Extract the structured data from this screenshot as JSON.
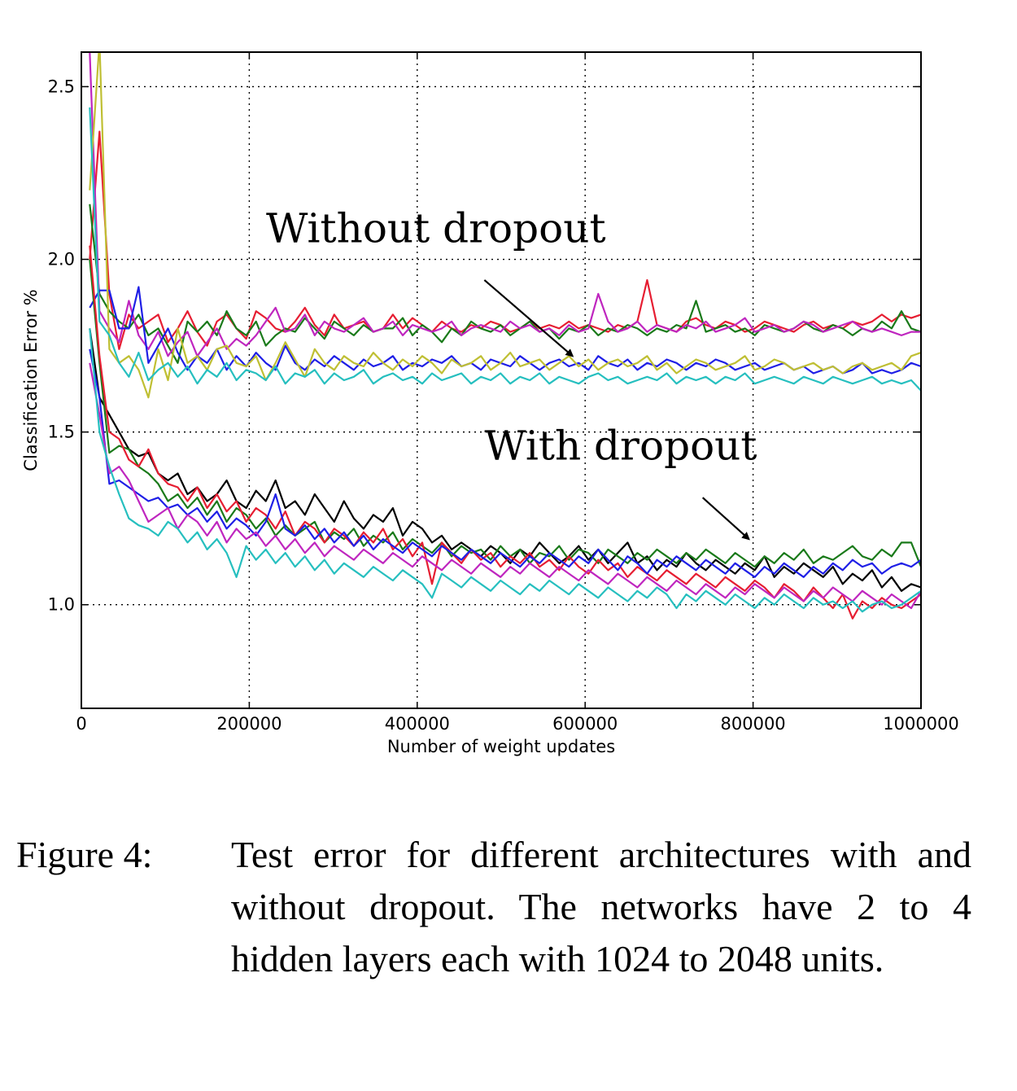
{
  "chart_data": {
    "type": "line",
    "xlabel": "Number of weight updates",
    "ylabel": "Classification Error %",
    "xlim": [
      0,
      1000000
    ],
    "ylim": [
      0.7,
      2.6
    ],
    "xticks": [
      0,
      200000,
      400000,
      600000,
      800000,
      1000000
    ],
    "xtick_labels": [
      "0",
      "200000",
      "400000",
      "600000",
      "800000",
      "1000000"
    ],
    "yticks": [
      1.0,
      1.5,
      2.0,
      2.5
    ],
    "ytick_labels": [
      "1.0",
      "1.5",
      "2.0",
      "2.5"
    ],
    "grid": true,
    "legend": "none",
    "annotations": [
      {
        "text": "Without dropout",
        "x": 220000,
        "y": 2.05,
        "arrow_from": [
          480000,
          1.94
        ],
        "arrow_to": [
          585000,
          1.72
        ]
      },
      {
        "text": "With dropout",
        "x": 480000,
        "y": 1.42,
        "arrow_from": [
          740000,
          1.31
        ],
        "arrow_to": [
          795000,
          1.19
        ]
      }
    ],
    "series_colors": {
      "blue": "#1f1fe6",
      "green": "#1a7a1a",
      "red": "#e61e32",
      "cyan": "#26bfbf",
      "magenta": "#bf26bf",
      "yellow": "#bfbf33",
      "black": "#000000"
    },
    "series": [
      {
        "group": "without",
        "color": "red",
        "values": [
          2.0,
          2.37,
          1.9,
          1.74,
          1.84,
          1.8,
          1.82,
          1.84,
          1.76,
          1.8,
          1.85,
          1.79,
          1.75,
          1.82,
          1.84,
          1.8,
          1.77,
          1.85,
          1.83,
          1.8,
          1.79,
          1.82,
          1.86,
          1.81,
          1.78,
          1.84,
          1.8,
          1.81,
          1.82,
          1.79,
          1.8,
          1.84,
          1.8,
          1.83,
          1.81,
          1.79,
          1.82,
          1.8,
          1.79,
          1.81,
          1.8,
          1.82,
          1.81,
          1.79,
          1.8,
          1.82,
          1.8,
          1.81,
          1.8,
          1.82,
          1.8,
          1.81,
          1.8,
          1.79,
          1.81,
          1.8,
          1.82,
          1.94,
          1.81,
          1.8,
          1.79,
          1.82,
          1.83,
          1.81,
          1.8,
          1.82,
          1.81,
          1.79,
          1.8,
          1.82,
          1.81,
          1.8,
          1.79,
          1.81,
          1.82,
          1.8,
          1.81,
          1.8,
          1.82,
          1.81,
          1.82,
          1.84,
          1.82,
          1.84,
          1.83,
          1.84
        ]
      },
      {
        "group": "without",
        "color": "green",
        "values": [
          2.16,
          1.9,
          1.85,
          1.82,
          1.8,
          1.84,
          1.78,
          1.8,
          1.75,
          1.7,
          1.82,
          1.79,
          1.82,
          1.78,
          1.85,
          1.8,
          1.78,
          1.82,
          1.75,
          1.78,
          1.8,
          1.79,
          1.83,
          1.8,
          1.77,
          1.82,
          1.8,
          1.78,
          1.81,
          1.79,
          1.8,
          1.8,
          1.83,
          1.78,
          1.81,
          1.79,
          1.76,
          1.8,
          1.78,
          1.82,
          1.8,
          1.79,
          1.81,
          1.78,
          1.8,
          1.82,
          1.79,
          1.8,
          1.77,
          1.8,
          1.79,
          1.81,
          1.78,
          1.8,
          1.79,
          1.81,
          1.8,
          1.78,
          1.8,
          1.79,
          1.81,
          1.8,
          1.88,
          1.79,
          1.8,
          1.81,
          1.79,
          1.8,
          1.78,
          1.81,
          1.8,
          1.79,
          1.8,
          1.82,
          1.8,
          1.79,
          1.81,
          1.8,
          1.78,
          1.8,
          1.79,
          1.82,
          1.8,
          1.85,
          1.8,
          1.79
        ]
      },
      {
        "group": "without",
        "color": "magenta",
        "values": [
          2.6,
          1.85,
          1.8,
          1.76,
          1.88,
          1.78,
          1.74,
          1.79,
          1.72,
          1.76,
          1.79,
          1.72,
          1.76,
          1.8,
          1.74,
          1.77,
          1.75,
          1.78,
          1.82,
          1.86,
          1.79,
          1.8,
          1.84,
          1.78,
          1.82,
          1.8,
          1.79,
          1.81,
          1.83,
          1.79,
          1.8,
          1.82,
          1.78,
          1.81,
          1.8,
          1.79,
          1.8,
          1.82,
          1.78,
          1.8,
          1.81,
          1.8,
          1.79,
          1.82,
          1.8,
          1.81,
          1.79,
          1.8,
          1.78,
          1.81,
          1.79,
          1.8,
          1.9,
          1.82,
          1.79,
          1.8,
          1.82,
          1.79,
          1.81,
          1.8,
          1.79,
          1.81,
          1.8,
          1.82,
          1.79,
          1.8,
          1.81,
          1.83,
          1.79,
          1.8,
          1.81,
          1.79,
          1.8,
          1.82,
          1.81,
          1.79,
          1.8,
          1.81,
          1.82,
          1.8,
          1.79,
          1.8,
          1.79,
          1.78,
          1.79,
          1.79
        ]
      },
      {
        "group": "without",
        "color": "blue",
        "values": [
          1.86,
          1.91,
          1.91,
          1.8,
          1.8,
          1.92,
          1.7,
          1.75,
          1.8,
          1.73,
          1.68,
          1.72,
          1.7,
          1.74,
          1.68,
          1.72,
          1.69,
          1.73,
          1.7,
          1.68,
          1.75,
          1.7,
          1.68,
          1.71,
          1.69,
          1.72,
          1.7,
          1.68,
          1.71,
          1.69,
          1.7,
          1.72,
          1.68,
          1.7,
          1.69,
          1.71,
          1.7,
          1.72,
          1.69,
          1.7,
          1.68,
          1.71,
          1.7,
          1.69,
          1.72,
          1.7,
          1.68,
          1.7,
          1.71,
          1.69,
          1.7,
          1.68,
          1.72,
          1.7,
          1.69,
          1.71,
          1.68,
          1.7,
          1.69,
          1.71,
          1.7,
          1.68,
          1.7,
          1.69,
          1.71,
          1.7,
          1.68,
          1.69,
          1.7,
          1.68,
          1.69,
          1.7,
          1.68,
          1.69,
          1.67,
          1.68,
          1.69,
          1.67,
          1.68,
          1.7,
          1.67,
          1.68,
          1.67,
          1.68,
          1.7,
          1.69
        ]
      },
      {
        "group": "without",
        "color": "yellow",
        "values": [
          2.2,
          2.63,
          1.74,
          1.7,
          1.72,
          1.68,
          1.6,
          1.74,
          1.65,
          1.8,
          1.7,
          1.72,
          1.68,
          1.74,
          1.75,
          1.7,
          1.69,
          1.72,
          1.65,
          1.7,
          1.76,
          1.71,
          1.66,
          1.74,
          1.7,
          1.68,
          1.72,
          1.7,
          1.69,
          1.73,
          1.7,
          1.68,
          1.71,
          1.69,
          1.72,
          1.7,
          1.67,
          1.71,
          1.69,
          1.7,
          1.72,
          1.68,
          1.7,
          1.73,
          1.69,
          1.7,
          1.71,
          1.68,
          1.7,
          1.72,
          1.69,
          1.71,
          1.68,
          1.7,
          1.71,
          1.69,
          1.7,
          1.72,
          1.68,
          1.7,
          1.67,
          1.69,
          1.71,
          1.7,
          1.68,
          1.69,
          1.7,
          1.72,
          1.68,
          1.69,
          1.71,
          1.7,
          1.68,
          1.69,
          1.7,
          1.68,
          1.69,
          1.67,
          1.69,
          1.7,
          1.68,
          1.69,
          1.7,
          1.68,
          1.72,
          1.73
        ]
      },
      {
        "group": "without",
        "color": "cyan",
        "values": [
          2.44,
          1.82,
          1.78,
          1.7,
          1.66,
          1.73,
          1.65,
          1.68,
          1.7,
          1.66,
          1.69,
          1.64,
          1.68,
          1.66,
          1.7,
          1.65,
          1.68,
          1.67,
          1.65,
          1.69,
          1.64,
          1.67,
          1.66,
          1.68,
          1.64,
          1.67,
          1.65,
          1.66,
          1.68,
          1.64,
          1.66,
          1.67,
          1.65,
          1.66,
          1.64,
          1.67,
          1.65,
          1.66,
          1.67,
          1.64,
          1.66,
          1.65,
          1.67,
          1.64,
          1.66,
          1.65,
          1.67,
          1.64,
          1.66,
          1.65,
          1.64,
          1.66,
          1.67,
          1.65,
          1.66,
          1.64,
          1.65,
          1.66,
          1.65,
          1.67,
          1.64,
          1.66,
          1.65,
          1.66,
          1.64,
          1.66,
          1.65,
          1.67,
          1.64,
          1.65,
          1.66,
          1.65,
          1.64,
          1.66,
          1.65,
          1.64,
          1.66,
          1.65,
          1.64,
          1.65,
          1.66,
          1.64,
          1.65,
          1.64,
          1.65,
          1.62
        ]
      },
      {
        "group": "with",
        "color": "black",
        "values": [
          1.8,
          1.6,
          1.55,
          1.5,
          1.45,
          1.43,
          1.44,
          1.38,
          1.36,
          1.38,
          1.32,
          1.34,
          1.3,
          1.32,
          1.36,
          1.3,
          1.28,
          1.33,
          1.3,
          1.36,
          1.28,
          1.3,
          1.26,
          1.32,
          1.28,
          1.24,
          1.3,
          1.25,
          1.22,
          1.26,
          1.24,
          1.28,
          1.2,
          1.24,
          1.22,
          1.18,
          1.2,
          1.16,
          1.18,
          1.16,
          1.14,
          1.17,
          1.15,
          1.12,
          1.16,
          1.14,
          1.18,
          1.15,
          1.12,
          1.14,
          1.17,
          1.13,
          1.16,
          1.12,
          1.15,
          1.18,
          1.12,
          1.14,
          1.1,
          1.13,
          1.11,
          1.15,
          1.12,
          1.1,
          1.13,
          1.11,
          1.09,
          1.12,
          1.1,
          1.14,
          1.08,
          1.11,
          1.09,
          1.12,
          1.1,
          1.08,
          1.11,
          1.06,
          1.09,
          1.07,
          1.1,
          1.05,
          1.08,
          1.04,
          1.06,
          1.05
        ]
      },
      {
        "group": "with",
        "color": "green",
        "values": [
          2.0,
          1.7,
          1.44,
          1.46,
          1.45,
          1.4,
          1.38,
          1.35,
          1.3,
          1.32,
          1.28,
          1.31,
          1.26,
          1.3,
          1.24,
          1.28,
          1.26,
          1.22,
          1.25,
          1.2,
          1.23,
          1.2,
          1.22,
          1.24,
          1.18,
          1.21,
          1.19,
          1.22,
          1.17,
          1.2,
          1.18,
          1.21,
          1.16,
          1.19,
          1.17,
          1.15,
          1.18,
          1.14,
          1.17,
          1.15,
          1.16,
          1.13,
          1.17,
          1.14,
          1.16,
          1.12,
          1.15,
          1.14,
          1.17,
          1.13,
          1.16,
          1.15,
          1.12,
          1.16,
          1.14,
          1.12,
          1.15,
          1.13,
          1.16,
          1.14,
          1.12,
          1.15,
          1.13,
          1.16,
          1.14,
          1.12,
          1.15,
          1.13,
          1.11,
          1.14,
          1.12,
          1.15,
          1.13,
          1.16,
          1.12,
          1.14,
          1.13,
          1.15,
          1.17,
          1.14,
          1.13,
          1.16,
          1.14,
          1.18,
          1.18,
          1.11
        ]
      },
      {
        "group": "with",
        "color": "red",
        "values": [
          2.04,
          1.72,
          1.5,
          1.48,
          1.42,
          1.4,
          1.45,
          1.38,
          1.35,
          1.34,
          1.3,
          1.34,
          1.28,
          1.32,
          1.27,
          1.3,
          1.24,
          1.28,
          1.26,
          1.22,
          1.27,
          1.2,
          1.24,
          1.22,
          1.18,
          1.22,
          1.2,
          1.17,
          1.21,
          1.18,
          1.22,
          1.16,
          1.19,
          1.14,
          1.18,
          1.06,
          1.18,
          1.15,
          1.12,
          1.16,
          1.13,
          1.15,
          1.11,
          1.14,
          1.12,
          1.15,
          1.11,
          1.13,
          1.1,
          1.14,
          1.11,
          1.09,
          1.13,
          1.1,
          1.12,
          1.08,
          1.11,
          1.09,
          1.07,
          1.1,
          1.08,
          1.06,
          1.09,
          1.07,
          1.05,
          1.08,
          1.06,
          1.04,
          1.07,
          1.05,
          1.02,
          1.06,
          1.04,
          1.01,
          1.05,
          1.02,
          0.99,
          1.03,
          0.96,
          1.01,
          0.99,
          1.02,
          1.0,
          0.99,
          1.01,
          1.03
        ]
      },
      {
        "group": "with",
        "color": "blue",
        "values": [
          1.74,
          1.6,
          1.35,
          1.36,
          1.34,
          1.32,
          1.3,
          1.31,
          1.28,
          1.29,
          1.26,
          1.28,
          1.24,
          1.27,
          1.22,
          1.25,
          1.23,
          1.2,
          1.24,
          1.32,
          1.22,
          1.2,
          1.23,
          1.19,
          1.22,
          1.18,
          1.21,
          1.17,
          1.2,
          1.16,
          1.19,
          1.17,
          1.15,
          1.18,
          1.16,
          1.14,
          1.17,
          1.15,
          1.13,
          1.16,
          1.14,
          1.12,
          1.15,
          1.13,
          1.11,
          1.14,
          1.12,
          1.15,
          1.13,
          1.11,
          1.14,
          1.12,
          1.16,
          1.13,
          1.1,
          1.14,
          1.12,
          1.09,
          1.13,
          1.11,
          1.14,
          1.12,
          1.1,
          1.13,
          1.11,
          1.09,
          1.12,
          1.1,
          1.08,
          1.11,
          1.09,
          1.12,
          1.1,
          1.08,
          1.11,
          1.09,
          1.12,
          1.1,
          1.13,
          1.11,
          1.12,
          1.09,
          1.11,
          1.12,
          1.11,
          1.13
        ]
      },
      {
        "group": "with",
        "color": "magenta",
        "values": [
          1.7,
          1.55,
          1.38,
          1.4,
          1.36,
          1.3,
          1.24,
          1.26,
          1.28,
          1.22,
          1.26,
          1.24,
          1.2,
          1.24,
          1.18,
          1.22,
          1.19,
          1.21,
          1.17,
          1.2,
          1.16,
          1.19,
          1.15,
          1.18,
          1.14,
          1.17,
          1.15,
          1.13,
          1.16,
          1.14,
          1.12,
          1.15,
          1.13,
          1.11,
          1.14,
          1.12,
          1.1,
          1.13,
          1.11,
          1.09,
          1.12,
          1.1,
          1.08,
          1.11,
          1.09,
          1.12,
          1.1,
          1.08,
          1.11,
          1.09,
          1.07,
          1.1,
          1.08,
          1.06,
          1.09,
          1.07,
          1.05,
          1.08,
          1.06,
          1.04,
          1.07,
          1.05,
          1.03,
          1.06,
          1.04,
          1.02,
          1.05,
          1.03,
          1.06,
          1.04,
          1.02,
          1.05,
          1.03,
          1.01,
          1.04,
          1.02,
          1.05,
          1.03,
          1.01,
          1.04,
          1.02,
          1.0,
          1.03,
          1.01,
          0.99,
          1.04
        ]
      },
      {
        "group": "with",
        "color": "cyan",
        "values": [
          1.8,
          1.5,
          1.4,
          1.32,
          1.25,
          1.23,
          1.22,
          1.2,
          1.24,
          1.22,
          1.18,
          1.21,
          1.16,
          1.19,
          1.15,
          1.08,
          1.17,
          1.13,
          1.16,
          1.12,
          1.15,
          1.11,
          1.14,
          1.1,
          1.13,
          1.09,
          1.12,
          1.1,
          1.08,
          1.11,
          1.09,
          1.07,
          1.1,
          1.08,
          1.06,
          1.02,
          1.09,
          1.07,
          1.05,
          1.08,
          1.06,
          1.04,
          1.07,
          1.05,
          1.03,
          1.06,
          1.04,
          1.07,
          1.05,
          1.03,
          1.06,
          1.04,
          1.02,
          1.05,
          1.03,
          1.01,
          1.04,
          1.02,
          1.05,
          1.03,
          0.99,
          1.03,
          1.01,
          1.04,
          1.02,
          1.0,
          1.03,
          1.01,
          0.99,
          1.02,
          1.0,
          1.03,
          1.01,
          0.99,
          1.02,
          1.0,
          1.01,
          0.99,
          1.01,
          0.98,
          1.0,
          1.01,
          0.99,
          1.0,
          1.02,
          1.04
        ]
      }
    ]
  },
  "caption": {
    "label": "Figure 4:",
    "text": "Test error for different architectures with and without dropout. The networks have 2 to 4 hidden layers each with 1024 to 2048 units."
  }
}
